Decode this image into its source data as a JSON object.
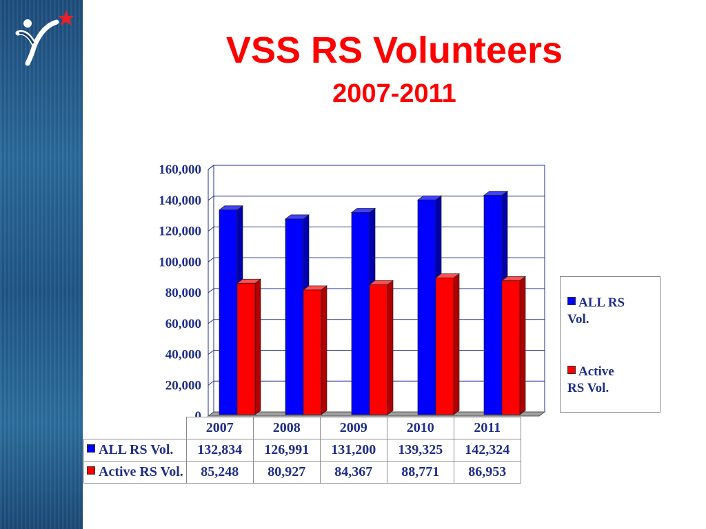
{
  "slide": {
    "title": "VSS RS Volunteers",
    "subtitle": "2007-2011",
    "logo_icon": "vss-star-logo-icon"
  },
  "chart_data": {
    "type": "bar",
    "categories": [
      "2007",
      "2008",
      "2009",
      "2010",
      "2011"
    ],
    "series": [
      {
        "name": "ALL RS Vol.",
        "values": [
          132834,
          126991,
          131200,
          139325,
          142324
        ],
        "color": "#0000ff"
      },
      {
        "name": "Active RS Vol.",
        "values": [
          85248,
          80927,
          84367,
          88771,
          86953
        ],
        "color": "#ff0000"
      }
    ],
    "data_labels": [
      [
        "132,834",
        "126,991",
        "131,200",
        "139,325",
        "142,324"
      ],
      [
        "85,248",
        "80,927",
        "84,367",
        "88,771",
        "86,953"
      ]
    ],
    "ylim": [
      0,
      160000
    ],
    "ytick_labels": [
      "0",
      "20,000",
      "40,000",
      "60,000",
      "80,000",
      "100,000",
      "120,000",
      "140,000",
      "160,000"
    ],
    "legend_lines": [
      [
        "ALL RS",
        "Vol."
      ],
      [
        "Active",
        "RS Vol."
      ]
    ],
    "legend_position": "right",
    "grid": true,
    "style": "3d-clustered-column"
  }
}
